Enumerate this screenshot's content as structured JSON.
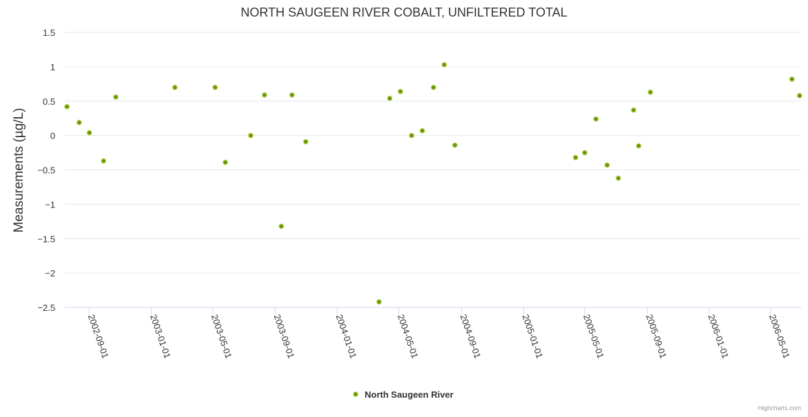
{
  "chart_data": {
    "type": "scatter",
    "title": "NORTH SAUGEEN RIVER COBALT, UNFILTERED TOTAL",
    "xlabel": "",
    "ylabel": "Measurements (µg/L)",
    "ylim": [
      -2.5,
      1.5
    ],
    "xlim": [
      "2002-07-15",
      "2006-06-30"
    ],
    "y_ticks": [
      "1.5",
      "1",
      "0.5",
      "0",
      "−0.5",
      "−1",
      "−1.5",
      "−2",
      "−2.5"
    ],
    "y_tick_values": [
      1.5,
      1,
      0.5,
      0,
      -0.5,
      -1,
      -1.5,
      -2,
      -2.5
    ],
    "x_ticks": [
      "2002-09-01",
      "2003-01-01",
      "2003-05-01",
      "2003-09-01",
      "2004-01-01",
      "2004-05-01",
      "2004-09-01",
      "2005-01-01",
      "2005-05-01",
      "2005-09-01",
      "2006-01-01",
      "2006-05-01"
    ],
    "grid": true,
    "legend_position": "bottom-center",
    "series": [
      {
        "name": "North Saugeen River",
        "color": "#6a9a00",
        "points": [
          {
            "x": "2002-07-19",
            "y": 0.42
          },
          {
            "x": "2002-08-12",
            "y": 0.19
          },
          {
            "x": "2002-09-01",
            "y": 0.04
          },
          {
            "x": "2002-09-29",
            "y": -0.37
          },
          {
            "x": "2002-10-23",
            "y": 0.56
          },
          {
            "x": "2003-02-16",
            "y": 0.7
          },
          {
            "x": "2003-05-06",
            "y": 0.7
          },
          {
            "x": "2003-05-26",
            "y": -0.39
          },
          {
            "x": "2003-07-15",
            "y": 0.0
          },
          {
            "x": "2003-08-11",
            "y": 0.59
          },
          {
            "x": "2003-09-13",
            "y": -1.32
          },
          {
            "x": "2003-10-04",
            "y": 0.59
          },
          {
            "x": "2003-10-31",
            "y": -0.09
          },
          {
            "x": "2004-03-23",
            "y": -2.42
          },
          {
            "x": "2004-04-13",
            "y": 0.54
          },
          {
            "x": "2004-05-04",
            "y": 0.64
          },
          {
            "x": "2004-05-26",
            "y": 0.0
          },
          {
            "x": "2004-06-16",
            "y": 0.07
          },
          {
            "x": "2004-07-08",
            "y": 0.7
          },
          {
            "x": "2004-07-29",
            "y": 1.03
          },
          {
            "x": "2004-08-19",
            "y": -0.14
          },
          {
            "x": "2005-04-13",
            "y": -0.32
          },
          {
            "x": "2005-05-01",
            "y": -0.25
          },
          {
            "x": "2005-05-23",
            "y": 0.24
          },
          {
            "x": "2005-06-14",
            "y": -0.43
          },
          {
            "x": "2005-07-06",
            "y": -0.62
          },
          {
            "x": "2005-08-05",
            "y": 0.37
          },
          {
            "x": "2005-08-15",
            "y": -0.15
          },
          {
            "x": "2005-09-07",
            "y": 0.63
          },
          {
            "x": "2006-06-12",
            "y": 0.82
          },
          {
            "x": "2006-06-27",
            "y": 0.58
          }
        ]
      }
    ],
    "credit": "Highcharts.com"
  }
}
